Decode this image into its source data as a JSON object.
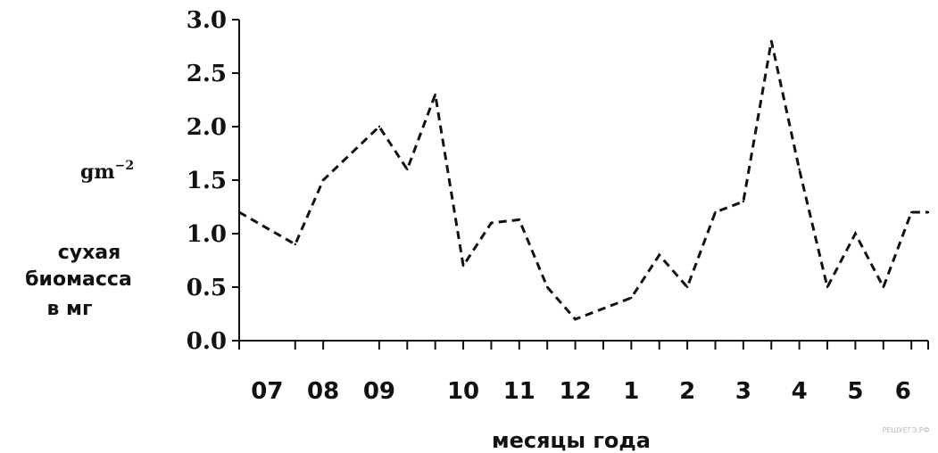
{
  "chart_data": {
    "type": "line",
    "title": "",
    "unit": "gm",
    "unit_exp": "−2",
    "ylabel_lines": [
      "сухая",
      "биомасса",
      "в мг"
    ],
    "xlabel": "месяцы года",
    "ylim": [
      0,
      3.0
    ],
    "y_ticks": [
      "0.0",
      "0.5",
      "1.0",
      "1.5",
      "2.0",
      "2.5",
      "3.0"
    ],
    "x_tick_labels": [
      {
        "label": "07",
        "x": 0.5
      },
      {
        "label": "08",
        "x": 1.5
      },
      {
        "label": "09",
        "x": 2.5
      },
      {
        "label": "10",
        "x": 4
      },
      {
        "label": "11",
        "x": 5
      },
      {
        "label": "12",
        "x": 6
      },
      {
        "label": "1",
        "x": 7
      },
      {
        "label": "2",
        "x": 8
      },
      {
        "label": "3",
        "x": 9
      },
      {
        "label": "4",
        "x": 10
      },
      {
        "label": "5",
        "x": 11
      },
      {
        "label": "6",
        "x": 11.85
      }
    ],
    "xlim": [
      0,
      12.3
    ],
    "line_style": "dashed",
    "series": [
      {
        "x": [
          0,
          1,
          1.5,
          2.5,
          3,
          3.5,
          4,
          4.5,
          5,
          5.5,
          6,
          6.5,
          7,
          7.5,
          8,
          8.5,
          9,
          9.5,
          10,
          10.5,
          11,
          11.5,
          12,
          12.3
        ],
        "values": [
          1.2,
          0.9,
          1.5,
          2.0,
          1.6,
          2.3,
          0.7,
          1.1,
          1.13,
          0.5,
          0.2,
          0.3,
          0.4,
          0.8,
          0.5,
          1.2,
          1.3,
          2.8,
          1.6,
          0.5,
          1.0,
          0.5,
          1.2,
          1.2
        ]
      }
    ]
  },
  "watermark": "РЕШУЕГЭ.РФ"
}
